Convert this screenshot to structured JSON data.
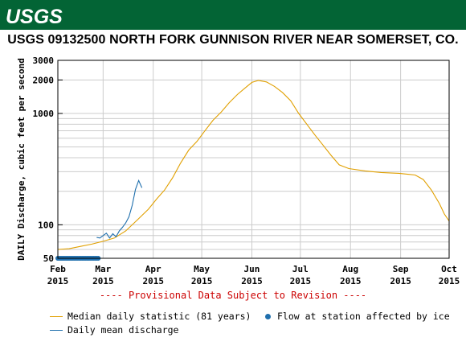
{
  "header": {
    "logo_text": "USGS",
    "title": "USGS 09132500 NORTH FORK GUNNISON RIVER NEAR SOMERSET, CO."
  },
  "colors": {
    "banner": "#036435",
    "median": "#e1a000",
    "discharge": "#1f6fad",
    "ice": "#1f6fad",
    "note": "#cc0000"
  },
  "chart_data": {
    "type": "line",
    "title": "USGS 09132500 NORTH FORK GUNNISON RIVER NEAR SOMERSET, CO.",
    "ylabel": "DAILY Discharge, cubic feet per second",
    "yscale": "log",
    "ylim": [
      50,
      3000
    ],
    "xlim": [
      "2015-02-01",
      "2015-10-01"
    ],
    "grid": true,
    "y_ticks": [
      50,
      100,
      1000,
      2000,
      3000
    ],
    "x_ticks": [
      {
        "month": "Feb",
        "year": "2015",
        "date": "2015-02-01"
      },
      {
        "month": "Mar",
        "year": "2015",
        "date": "2015-03-01"
      },
      {
        "month": "Apr",
        "year": "2015",
        "date": "2015-04-01"
      },
      {
        "month": "May",
        "year": "2015",
        "date": "2015-05-01"
      },
      {
        "month": "Jun",
        "year": "2015",
        "date": "2015-06-01"
      },
      {
        "month": "Jul",
        "year": "2015",
        "date": "2015-07-01"
      },
      {
        "month": "Aug",
        "year": "2015",
        "date": "2015-08-01"
      },
      {
        "month": "Sep",
        "year": "2015",
        "date": "2015-09-01"
      },
      {
        "month": "Oct",
        "year": "2015",
        "date": "2015-10-01"
      }
    ],
    "series": [
      {
        "name": "Median daily statistic (81 years)",
        "color": "#e1a000",
        "points": [
          [
            "2015-02-01",
            60
          ],
          [
            "2015-02-08",
            61
          ],
          [
            "2015-02-15",
            64
          ],
          [
            "2015-02-22",
            67
          ],
          [
            "2015-03-01",
            71
          ],
          [
            "2015-03-08",
            76
          ],
          [
            "2015-03-15",
            88
          ],
          [
            "2015-03-22",
            110
          ],
          [
            "2015-03-29",
            138
          ],
          [
            "2015-04-03",
            170
          ],
          [
            "2015-04-08",
            205
          ],
          [
            "2015-04-13",
            265
          ],
          [
            "2015-04-18",
            360
          ],
          [
            "2015-04-23",
            470
          ],
          [
            "2015-04-28",
            560
          ],
          [
            "2015-05-03",
            700
          ],
          [
            "2015-05-08",
            870
          ],
          [
            "2015-05-13",
            1030
          ],
          [
            "2015-05-18",
            1250
          ],
          [
            "2015-05-23",
            1480
          ],
          [
            "2015-05-28",
            1700
          ],
          [
            "2015-06-01",
            1900
          ],
          [
            "2015-06-05",
            1980
          ],
          [
            "2015-06-10",
            1920
          ],
          [
            "2015-06-15",
            1750
          ],
          [
            "2015-06-20",
            1540
          ],
          [
            "2015-06-25",
            1300
          ],
          [
            "2015-06-30",
            1000
          ],
          [
            "2015-07-05",
            800
          ],
          [
            "2015-07-10",
            640
          ],
          [
            "2015-07-15",
            520
          ],
          [
            "2015-07-20",
            420
          ],
          [
            "2015-07-25",
            345
          ],
          [
            "2015-07-31",
            320
          ],
          [
            "2015-08-10",
            305
          ],
          [
            "2015-08-20",
            295
          ],
          [
            "2015-08-31",
            290
          ],
          [
            "2015-09-10",
            280
          ],
          [
            "2015-09-15",
            255
          ],
          [
            "2015-09-20",
            205
          ],
          [
            "2015-09-25",
            155
          ],
          [
            "2015-09-28",
            125
          ],
          [
            "2015-10-01",
            108
          ]
        ]
      },
      {
        "name": "Daily mean discharge",
        "color": "#1f6fad",
        "points": [
          [
            "2015-02-25",
            77
          ],
          [
            "2015-02-27",
            76
          ],
          [
            "2015-03-01",
            80
          ],
          [
            "2015-03-03",
            84
          ],
          [
            "2015-03-05",
            76
          ],
          [
            "2015-03-07",
            83
          ],
          [
            "2015-03-09",
            78
          ],
          [
            "2015-03-11",
            88
          ],
          [
            "2015-03-13",
            95
          ],
          [
            "2015-03-15",
            104
          ],
          [
            "2015-03-17",
            118
          ],
          [
            "2015-03-19",
            150
          ],
          [
            "2015-03-21",
            208
          ],
          [
            "2015-03-23",
            250
          ],
          [
            "2015-03-25",
            215
          ]
        ]
      },
      {
        "name": "Flow at station affected by ice",
        "color": "#1f6fad",
        "marker": "circle",
        "from": "2015-02-01",
        "to": "2015-02-26",
        "value": 50
      }
    ],
    "annotation": "---- Provisional Data Subject to Revision ----"
  },
  "legend": {
    "median_label": "Median daily statistic (81 years)",
    "ice_label": "Flow at station affected by ice",
    "discharge_label": "Daily mean discharge"
  }
}
